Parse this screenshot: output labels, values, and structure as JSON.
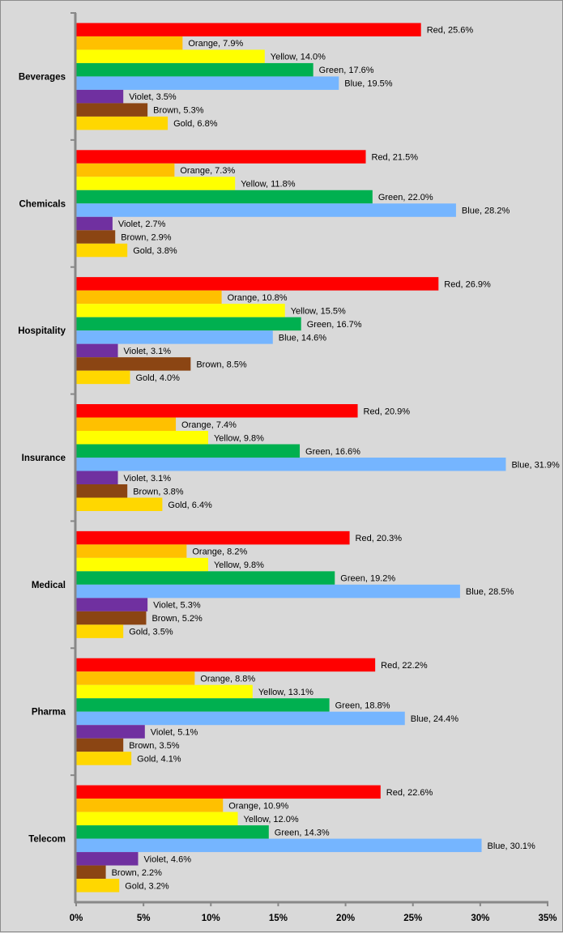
{
  "chart_data": {
    "type": "bar",
    "orientation": "horizontal",
    "title": "",
    "xlabel": "",
    "ylabel": "",
    "xlim": [
      0,
      35
    ],
    "x_ticks": [
      "0%",
      "5%",
      "10%",
      "15%",
      "20%",
      "25%",
      "30%",
      "35%"
    ],
    "grid": false,
    "legend": "none",
    "categories": [
      "Beverages",
      "Chemicals",
      "Hospitality",
      "Insurance",
      "Medical",
      "Pharma",
      "Telecom"
    ],
    "series": [
      {
        "name": "Red",
        "color": "#FF0000",
        "values": [
          25.6,
          21.5,
          26.9,
          20.9,
          20.3,
          22.2,
          22.6
        ]
      },
      {
        "name": "Orange",
        "color": "#FFC000",
        "values": [
          7.9,
          7.3,
          10.8,
          7.4,
          8.2,
          8.8,
          10.9
        ]
      },
      {
        "name": "Yellow",
        "color": "#FFFF00",
        "values": [
          14.0,
          11.8,
          15.5,
          9.8,
          9.8,
          13.1,
          12.0
        ]
      },
      {
        "name": "Green",
        "color": "#00B050",
        "values": [
          17.6,
          22.0,
          16.7,
          16.6,
          19.2,
          18.8,
          14.3
        ]
      },
      {
        "name": "Blue",
        "color": "#75B5FF",
        "values": [
          19.5,
          28.2,
          14.6,
          31.9,
          28.5,
          24.4,
          30.1
        ]
      },
      {
        "name": "Violet",
        "color": "#7030A0",
        "values": [
          3.5,
          2.7,
          3.1,
          3.1,
          5.3,
          5.1,
          4.6
        ]
      },
      {
        "name": "Brown",
        "color": "#8B4513",
        "values": [
          5.3,
          2.9,
          8.5,
          3.8,
          5.2,
          3.5,
          2.2
        ]
      },
      {
        "name": "Gold",
        "color": "#FFD700",
        "values": [
          6.8,
          3.8,
          4.0,
          6.4,
          3.5,
          4.1,
          3.2
        ]
      }
    ]
  }
}
